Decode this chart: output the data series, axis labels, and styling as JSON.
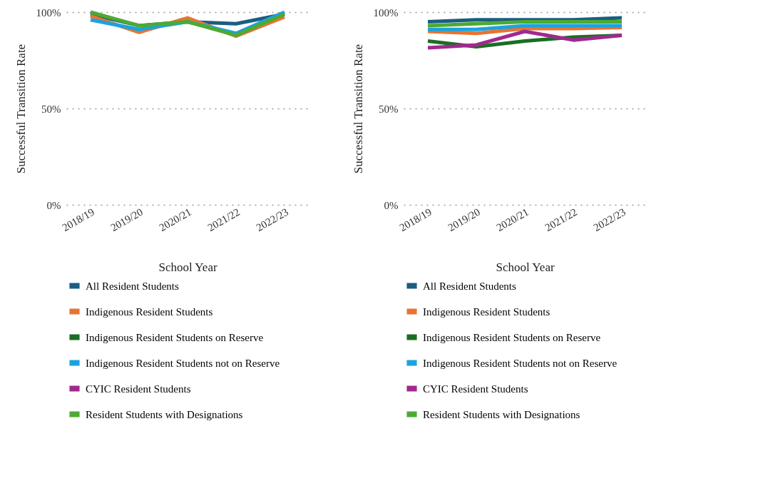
{
  "chart_data": [
    {
      "type": "line",
      "xlabel": "School Year",
      "ylabel": "Successful Transition Rate",
      "categories": [
        "2018/19",
        "2019/20",
        "2020/21",
        "2021/22",
        "2022/23"
      ],
      "ylim": [
        0,
        100
      ],
      "yticks": [
        {
          "value": 0,
          "label": "0%"
        },
        {
          "value": 50,
          "label": "50%"
        },
        {
          "value": 100,
          "label": "100%"
        }
      ],
      "grid": "y",
      "legend": "bottom",
      "series": [
        {
          "name": "All Resident Students",
          "color": "#1a5e82",
          "values": [
            99,
            93,
            95,
            94,
            99
          ]
        },
        {
          "name": "Indigenous Resident Students",
          "color": "#e87432",
          "values": [
            98,
            89.5,
            97,
            87.5,
            97.5
          ]
        },
        {
          "name": "Indigenous Resident Students on Reserve",
          "color": "#1a6e23",
          "values": [
            null,
            null,
            null,
            null,
            null
          ]
        },
        {
          "name": "Indigenous Resident Students not on Reserve",
          "color": "#1ba3de",
          "values": [
            96,
            91,
            95,
            89,
            100
          ]
        },
        {
          "name": "CYIC Resident Students",
          "color": "#a0298f",
          "values": [
            null,
            null,
            null,
            null,
            null
          ]
        },
        {
          "name": "Resident Students with Designations",
          "color": "#4daa32",
          "values": [
            100,
            93,
            95,
            88,
            99
          ]
        }
      ]
    },
    {
      "type": "line",
      "xlabel": "School Year",
      "ylabel": "Successful Transition Rate",
      "categories": [
        "2018/19",
        "2019/20",
        "2020/21",
        "2021/22",
        "2022/23"
      ],
      "ylim": [
        0,
        100
      ],
      "yticks": [
        {
          "value": 0,
          "label": "0%"
        },
        {
          "value": 50,
          "label": "50%"
        },
        {
          "value": 100,
          "label": "100%"
        }
      ],
      "grid": "y",
      "legend": "bottom",
      "series": [
        {
          "name": "All Resident Students",
          "color": "#1a5e82",
          "values": [
            95,
            96,
            96,
            96,
            97
          ]
        },
        {
          "name": "Indigenous Resident Students",
          "color": "#e87432",
          "values": [
            90,
            89,
            91.5,
            91.5,
            92
          ]
        },
        {
          "name": "Indigenous Resident Students on Reserve",
          "color": "#1a6e23",
          "values": [
            85,
            82,
            85,
            87,
            88
          ]
        },
        {
          "name": "Indigenous Resident Students not on Reserve",
          "color": "#1ba3de",
          "values": [
            91,
            91,
            93,
            93,
            93
          ]
        },
        {
          "name": "CYIC Resident Students",
          "color": "#a0298f",
          "values": [
            81.5,
            83,
            90,
            85.5,
            88
          ]
        },
        {
          "name": "Resident Students with Designations",
          "color": "#4daa32",
          "values": [
            93,
            94,
            95,
            95,
            95
          ]
        }
      ]
    }
  ]
}
